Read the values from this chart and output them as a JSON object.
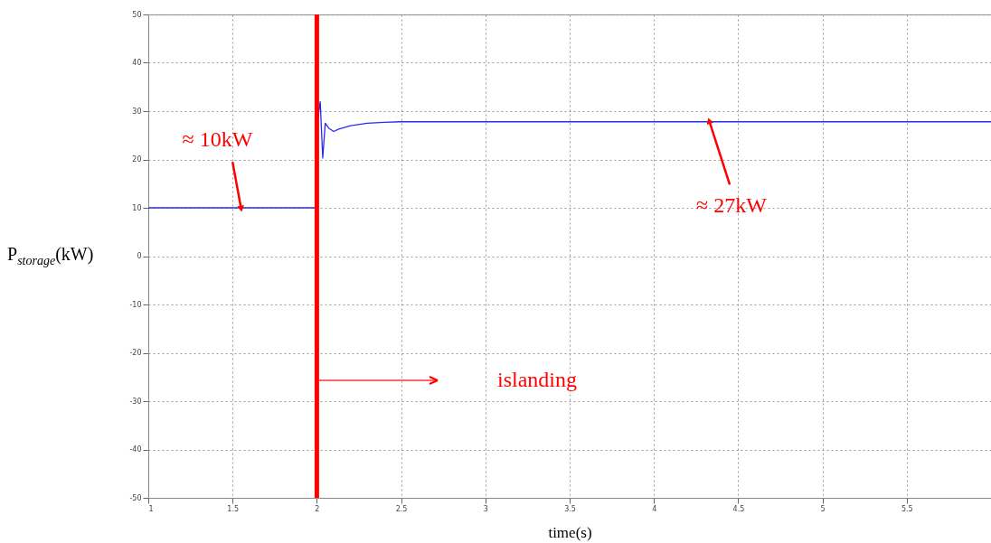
{
  "chart_data": {
    "type": "line",
    "xlabel": "time(s)",
    "ylabel": "P$_{storage}$(kW)",
    "x": [
      1,
      2,
      2.005,
      2.02,
      2.035,
      2.05,
      2.07,
      2.1,
      2.13,
      2.2,
      2.3,
      2.4,
      2.5,
      3,
      4,
      5,
      6
    ],
    "series": [
      {
        "color": "#2b2bf0",
        "values": [
          10,
          10,
          28,
          32,
          20.3,
          27.5,
          26.5,
          25.8,
          26.3,
          27.0,
          27.5,
          27.7,
          27.8,
          27.8,
          27.8,
          27.8,
          27.8
        ]
      }
    ],
    "xlim": [
      1,
      6
    ],
    "xticks": [
      1,
      1.5,
      2,
      2.5,
      3,
      3.5,
      4,
      4.5,
      5,
      5.5
    ],
    "ylim": [
      -50,
      50
    ],
    "yticks": [
      -50,
      -40,
      -30,
      -20,
      -10,
      0,
      10,
      20,
      30,
      40,
      50
    ],
    "grid": true,
    "ref_lines": [
      {
        "axis": "x",
        "value": 2,
        "color": "#ff0000"
      }
    ],
    "annotations": [
      {
        "text": "≈ 10kW",
        "x": 1.55,
        "y": 10
      },
      {
        "text": "≈ 27kW",
        "x": 4.33,
        "y": 27.8
      },
      "islanding"
    ]
  }
}
